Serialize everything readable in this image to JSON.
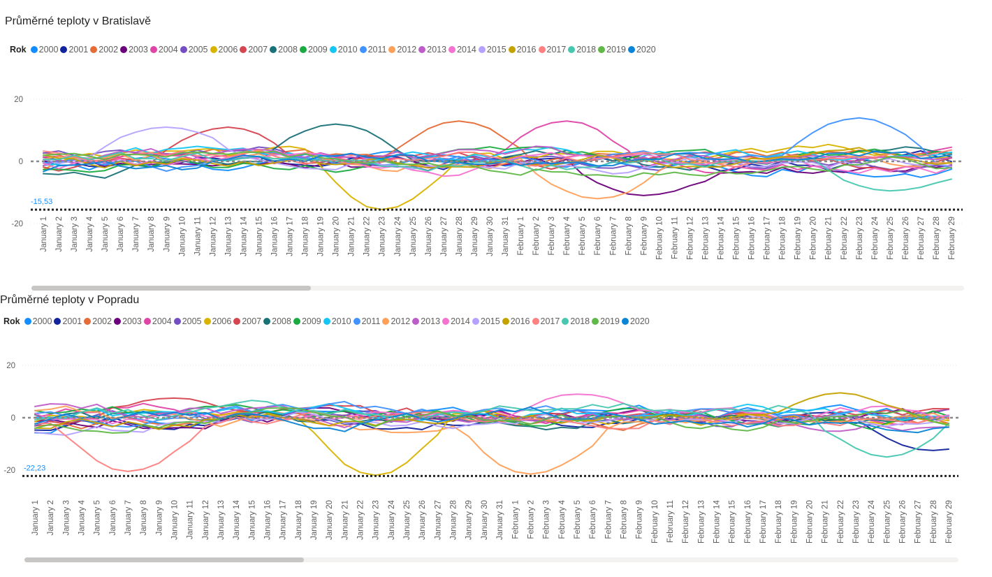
{
  "legend_colors": {
    "2000": "#118dff",
    "2001": "#12239e",
    "2002": "#e66c37",
    "2003": "#6b007b",
    "2004": "#e044a7",
    "2005": "#744ec2",
    "2006": "#d9b300",
    "2007": "#d64550",
    "2008": "#197278",
    "2009": "#1aab40",
    "2010": "#15c6f4",
    "2011": "#4092ff",
    "2012": "#ffa058",
    "2013": "#be5dc9",
    "2014": "#f472d0",
    "2015": "#b5a1ff",
    "2016": "#c4a200",
    "2017": "#ff8080",
    "2018": "#47c7b0",
    "2019": "#5fb847",
    "2020": "#0a84d6"
  },
  "chart_data": [
    {
      "type": "line",
      "title": "Průměrné teploty v Bratislavě",
      "legend_title": "Rok",
      "legend_position": "top-left",
      "series_names": [
        "2000",
        "2001",
        "2002",
        "2003",
        "2004",
        "2005",
        "2006",
        "2007",
        "2008",
        "2009",
        "2010",
        "2011",
        "2012",
        "2013",
        "2014",
        "2015",
        "2016",
        "2017",
        "2018",
        "2019",
        "2020"
      ],
      "x": [
        "January 1",
        "January 2",
        "January 3",
        "January 4",
        "January 5",
        "January 6",
        "January 7",
        "January 8",
        "January 9",
        "January 10",
        "January 11",
        "January 12",
        "January 13",
        "January 14",
        "January 15",
        "January 16",
        "January 17",
        "January 18",
        "January 19",
        "January 20",
        "January 21",
        "January 22",
        "January 23",
        "January 24",
        "January 25",
        "January 26",
        "January 27",
        "January 28",
        "January 29",
        "January 30",
        "January 31",
        "February 1",
        "February 2",
        "February 3",
        "February 4",
        "February 5",
        "February 6",
        "February 7",
        "February 8",
        "February 9",
        "February 10",
        "February 11",
        "February 12",
        "February 13",
        "February 14",
        "February 15",
        "February 16",
        "February 17",
        "February 18",
        "February 19",
        "February 20",
        "February 21",
        "February 22",
        "February 23",
        "February 24",
        "February 25",
        "February 26",
        "February 27",
        "February 28",
        "February 29"
      ],
      "y_ticks": [
        20,
        0,
        -20
      ],
      "ylim": [
        -22,
        22
      ],
      "grid": true,
      "min_line": {
        "value": -15.53,
        "label": "-15,53"
      },
      "highlights": {
        "2008": {
          "at": "January 20",
          "value": 12
        },
        "2004": {
          "at": "February 4",
          "value": 13
        },
        "2002": {
          "at": "January 28",
          "value": 13
        },
        "2007": {
          "at": "January 13",
          "value": 11
        },
        "2015": {
          "at": "January 9",
          "value": 11
        },
        "2011": {
          "at": "February 23",
          "value": 14
        },
        "2006": {
          "at": "January 23",
          "value": -15.5
        },
        "2012": {
          "at": "February 6",
          "value": -12
        },
        "2003": {
          "at": "February 9",
          "value": -11
        },
        "2018": {
          "at": "February 25",
          "value": -9.5
        }
      }
    },
    {
      "type": "line",
      "title": "Průměrné teploty v Popradu",
      "legend_title": "Rok",
      "legend_position": "top-left",
      "series_names": [
        "2000",
        "2001",
        "2002",
        "2003",
        "2004",
        "2005",
        "2006",
        "2007",
        "2008",
        "2009",
        "2010",
        "2011",
        "2012",
        "2013",
        "2014",
        "2015",
        "2016",
        "2017",
        "2018",
        "2019",
        "2020"
      ],
      "x": [
        "January 1",
        "January 2",
        "January 3",
        "January 4",
        "January 5",
        "January 6",
        "January 7",
        "January 8",
        "January 9",
        "January 10",
        "January 11",
        "January 12",
        "January 13",
        "January 14",
        "January 15",
        "January 16",
        "January 17",
        "January 18",
        "January 19",
        "January 20",
        "January 21",
        "January 22",
        "January 23",
        "January 24",
        "January 25",
        "January 26",
        "January 27",
        "January 28",
        "January 29",
        "January 30",
        "January 31",
        "February 1",
        "February 2",
        "February 3",
        "February 4",
        "February 5",
        "February 6",
        "February 7",
        "February 8",
        "February 9",
        "February 10",
        "February 11",
        "February 12",
        "February 13",
        "February 14",
        "February 15",
        "February 16",
        "February 17",
        "February 18",
        "February 19",
        "February 20",
        "February 21",
        "February 22",
        "February 23",
        "February 24",
        "February 25",
        "February 26",
        "February 27",
        "February 28",
        "February 29"
      ],
      "y_ticks": [
        20,
        0,
        -20
      ],
      "ylim": [
        -25,
        25
      ],
      "grid": true,
      "min_line": {
        "value": -22.23,
        "label": "-22,23"
      },
      "highlights": {
        "2006": {
          "at": "January 23",
          "value": -22
        },
        "2012": {
          "at": "February 2",
          "value": -21.5
        },
        "2017": {
          "at": "January 7",
          "value": -20.5
        },
        "2014": {
          "at": "February 5",
          "value": 9
        },
        "2016": {
          "at": "February 22",
          "value": 9.5
        },
        "2007": {
          "at": "January 10",
          "value": 7.5
        },
        "2018": {
          "at": "February 25",
          "value": -15
        },
        "2001": {
          "at": "February 28",
          "value": -12.5
        }
      }
    }
  ]
}
